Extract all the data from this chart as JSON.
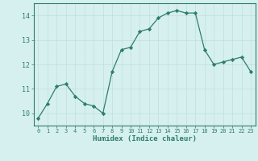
{
  "x": [
    0,
    1,
    2,
    3,
    4,
    5,
    6,
    7,
    8,
    9,
    10,
    11,
    12,
    13,
    14,
    15,
    16,
    17,
    18,
    19,
    20,
    21,
    22,
    23
  ],
  "y": [
    9.8,
    10.4,
    11.1,
    11.2,
    10.7,
    10.4,
    10.3,
    10.0,
    11.7,
    12.6,
    12.7,
    13.35,
    13.45,
    13.9,
    14.1,
    14.2,
    14.1,
    14.1,
    12.6,
    12.0,
    12.1,
    12.2,
    12.3,
    11.7
  ],
  "xlabel": "Humidex (Indice chaleur)",
  "ylim": [
    9.5,
    14.5
  ],
  "xlim": [
    -0.5,
    23.5
  ],
  "yticks": [
    10,
    11,
    12,
    13,
    14
  ],
  "xticks": [
    0,
    1,
    2,
    3,
    4,
    5,
    6,
    7,
    8,
    9,
    10,
    11,
    12,
    13,
    14,
    15,
    16,
    17,
    18,
    19,
    20,
    21,
    22,
    23
  ],
  "line_color": "#2e7d6e",
  "marker_color": "#2e7d6e",
  "bg_color": "#d6f0ef",
  "grid_color": "#c0dedd",
  "axis_color": "#2e7d6e",
  "tick_color": "#2e7d6e",
  "label_color": "#2e7d6e",
  "font_family": "monospace"
}
